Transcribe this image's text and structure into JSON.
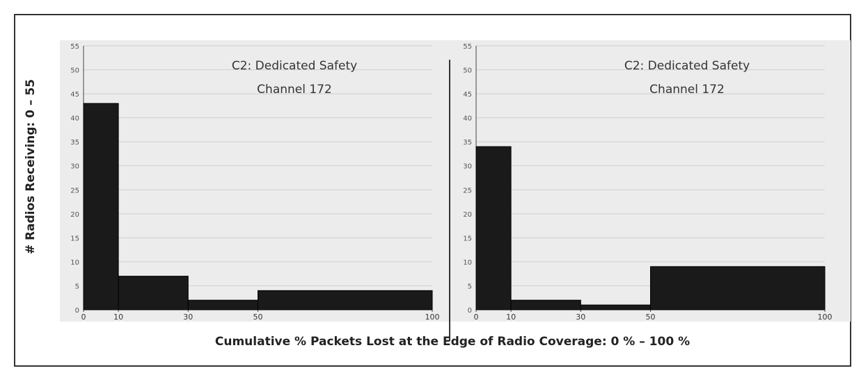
{
  "ylabel": "# Radios Receiving: 0 – 55",
  "xlabel": "Cumulative % Packets Lost at the Edge of Radio Coverage: 0 % – 100 %",
  "chart_data": [
    {
      "type": "bar",
      "title": "C2: Dedicated Safety\nChannel 172",
      "bins": [
        [
          0,
          10
        ],
        [
          10,
          30
        ],
        [
          30,
          50
        ],
        [
          50,
          100
        ]
      ],
      "values": [
        43,
        7,
        2,
        4
      ],
      "x_ticks": [
        0,
        10,
        30,
        50,
        100
      ],
      "y_ticks": [
        0,
        5,
        10,
        15,
        20,
        25,
        30,
        35,
        40,
        45,
        50,
        55
      ],
      "xlim": [
        0,
        100
      ],
      "ylim": [
        0,
        55
      ],
      "grid": true,
      "bar_color": "#1a1a1a",
      "background": "#ececec"
    },
    {
      "type": "bar",
      "title": "C2: Dedicated Safety\nChannel 172",
      "bins": [
        [
          0,
          10
        ],
        [
          10,
          30
        ],
        [
          30,
          50
        ],
        [
          50,
          100
        ]
      ],
      "values": [
        34,
        2,
        1,
        9
      ],
      "x_ticks": [
        0,
        10,
        30,
        50,
        100
      ],
      "y_ticks": [
        0,
        5,
        10,
        15,
        20,
        25,
        30,
        35,
        40,
        45,
        50,
        55
      ],
      "xlim": [
        0,
        100
      ],
      "ylim": [
        0,
        55
      ],
      "grid": true,
      "bar_color": "#1a1a1a",
      "background": "#ececec"
    }
  ]
}
